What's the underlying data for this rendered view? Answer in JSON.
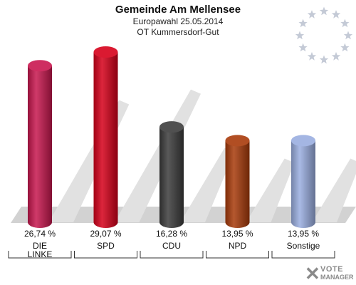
{
  "header": {
    "title": "Gemeinde Am Mellensee",
    "subtitle1": "Europawahl 25.05.2014",
    "subtitle2": "OT Kummersdorf-Gut"
  },
  "logo": {
    "mark": "✕",
    "line1": "VOTE",
    "line2": "MANAGER"
  },
  "chart_data": {
    "type": "bar",
    "title": "Gemeinde Am Mellensee",
    "categories": [
      "DIE LINKE",
      "SPD",
      "CDU",
      "NPD",
      "Sonstige"
    ],
    "category_lines": [
      [
        "DIE",
        "LINKE"
      ],
      [
        "SPD"
      ],
      [
        "CDU"
      ],
      [
        "NPD"
      ],
      [
        "Sonstige"
      ]
    ],
    "values": [
      26.74,
      29.07,
      16.28,
      13.95,
      13.95
    ],
    "value_labels": [
      "26,74 %",
      "29,07 %",
      "16,28 %",
      "13,95 %",
      "13,95 %"
    ],
    "colors": [
      "#c8174f",
      "#d6001a",
      "#3c3c3c",
      "#a83a0a",
      "#9aaee0"
    ],
    "xlabel": "",
    "ylabel": "",
    "grid": false,
    "legend": "none"
  }
}
